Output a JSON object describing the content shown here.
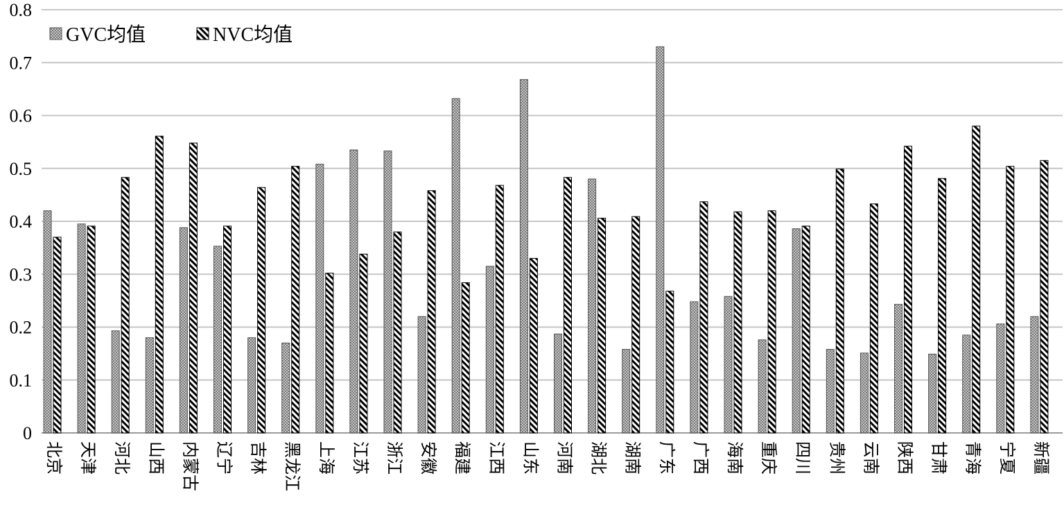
{
  "chart_data": {
    "type": "bar",
    "categories": [
      "北京",
      "天津",
      "河北",
      "山西",
      "内蒙古",
      "辽宁",
      "吉林",
      "黑龙江",
      "上海",
      "江苏",
      "浙江",
      "安徽",
      "福建",
      "江西",
      "山东",
      "河南",
      "湖北",
      "湖南",
      "广东",
      "广西",
      "海南",
      "重庆",
      "四川",
      "贵州",
      "云南",
      "陕西",
      "甘肃",
      "青海",
      "宁夏",
      "新疆"
    ],
    "series": [
      {
        "name": "GVC均值",
        "values": [
          0.42,
          0.395,
          0.193,
          0.18,
          0.388,
          0.353,
          0.18,
          0.17,
          0.508,
          0.535,
          0.533,
          0.22,
          0.632,
          0.315,
          0.668,
          0.187,
          0.48,
          0.158,
          0.73,
          0.248,
          0.258,
          0.176,
          0.386,
          0.158,
          0.151,
          0.243,
          0.149,
          0.185,
          0.206,
          0.22
        ]
      },
      {
        "name": "NVC均值",
        "values": [
          0.37,
          0.391,
          0.483,
          0.561,
          0.548,
          0.391,
          0.464,
          0.504,
          0.302,
          0.338,
          0.38,
          0.458,
          0.284,
          0.468,
          0.33,
          0.483,
          0.406,
          0.409,
          0.268,
          0.437,
          0.418,
          0.42,
          0.391,
          0.499,
          0.433,
          0.542,
          0.481,
          0.58,
          0.504,
          0.515
        ]
      }
    ],
    "yticks": [
      "0",
      "0.1",
      "0.2",
      "0.3",
      "0.4",
      "0.5",
      "0.6",
      "0.7",
      "0.8"
    ],
    "ylim": [
      0,
      0.8
    ],
    "grid": true,
    "legend_position": "top-left",
    "title": "",
    "xlabel": "",
    "ylabel": ""
  }
}
